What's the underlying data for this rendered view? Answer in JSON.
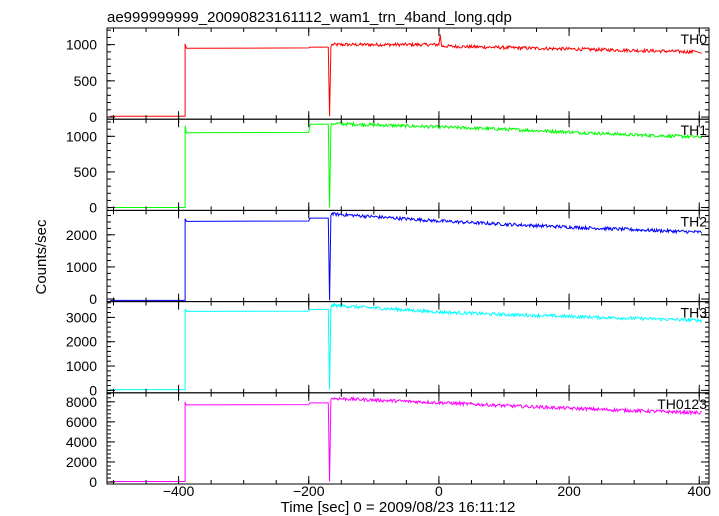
{
  "chart_data": {
    "type": "line",
    "title": "ae999999999_20090823161112_wam1_trn_4band_long.qdp",
    "xlabel": "Time [sec] 0 = 2009/08/23 16:11:12",
    "ylabel": "Counts/sec",
    "xlim": [
      -510,
      415
    ],
    "x_ticks": [
      -400,
      -200,
      0,
      200,
      400
    ],
    "x_tick_labels": [
      "−400",
      "−200",
      "0",
      "200",
      "400"
    ],
    "grid": false,
    "panels": [
      {
        "name": "TH0",
        "color": "#ff0000",
        "ylim": [
          -30,
          1230
        ],
        "y_ticks": [
          0,
          500,
          1000
        ],
        "y_tick_labels": [
          "0",
          "500",
          "1000"
        ],
        "points": [
          [
            -505,
            10
          ],
          [
            -390,
            10
          ],
          [
            -390,
            1010
          ],
          [
            -388,
            950
          ],
          [
            -200,
            955
          ],
          [
            -198,
            965
          ],
          [
            -170,
            965
          ],
          [
            -168,
            10
          ],
          [
            -166,
            960
          ],
          [
            -165,
            1000
          ],
          [
            0,
            1000
          ],
          [
            2,
            1140
          ],
          [
            4,
            980
          ],
          [
            100,
            960
          ],
          [
            200,
            940
          ],
          [
            300,
            920
          ],
          [
            390,
            900
          ],
          [
            404,
            880
          ]
        ]
      },
      {
        "name": "TH1",
        "color": "#00ff00",
        "ylim": [
          -40,
          1240
        ],
        "y_ticks": [
          0,
          500,
          1000
        ],
        "y_tick_labels": [
          "0",
          "500",
          "1000"
        ],
        "points": [
          [
            -505,
            0
          ],
          [
            -390,
            0
          ],
          [
            -390,
            1150
          ],
          [
            -388,
            1050
          ],
          [
            -200,
            1055
          ],
          [
            -198,
            1170
          ],
          [
            -170,
            1170
          ],
          [
            -168,
            0
          ],
          [
            -166,
            1120
          ],
          [
            -165,
            1180
          ],
          [
            100,
            1100
          ],
          [
            200,
            1060
          ],
          [
            300,
            1020
          ],
          [
            404,
            990
          ]
        ]
      },
      {
        "name": "TH2",
        "color": "#0000ff",
        "ylim": [
          -80,
          2760
        ],
        "y_ticks": [
          0,
          1000,
          2000
        ],
        "y_tick_labels": [
          "0",
          "1000",
          "2000"
        ],
        "points": [
          [
            -505,
            -40
          ],
          [
            -390,
            -40
          ],
          [
            -390,
            2500
          ],
          [
            -388,
            2420
          ],
          [
            -200,
            2430
          ],
          [
            -198,
            2520
          ],
          [
            -170,
            2520
          ],
          [
            -168,
            -40
          ],
          [
            -166,
            2600
          ],
          [
            -165,
            2650
          ],
          [
            0,
            2430
          ],
          [
            100,
            2330
          ],
          [
            200,
            2240
          ],
          [
            300,
            2160
          ],
          [
            404,
            2080
          ]
        ]
      },
      {
        "name": "TH3",
        "color": "#00ffff",
        "ylim": [
          -100,
          3650
        ],
        "y_ticks": [
          0,
          1000,
          2000,
          3000
        ],
        "y_tick_labels": [
          "0",
          "1000",
          "2000",
          "3000"
        ],
        "points": [
          [
            -505,
            30
          ],
          [
            -390,
            30
          ],
          [
            -390,
            3350
          ],
          [
            -388,
            3250
          ],
          [
            -200,
            3260
          ],
          [
            -198,
            3330
          ],
          [
            -170,
            3330
          ],
          [
            -168,
            30
          ],
          [
            -166,
            3400
          ],
          [
            -165,
            3500
          ],
          [
            0,
            3220
          ],
          [
            100,
            3120
          ],
          [
            200,
            3040
          ],
          [
            300,
            2960
          ],
          [
            404,
            2880
          ]
        ]
      },
      {
        "name": "TH0123",
        "color": "#ff00ff",
        "ylim": [
          -200,
          8900
        ],
        "y_ticks": [
          0,
          2000,
          4000,
          6000,
          8000
        ],
        "y_tick_labels": [
          "0",
          "2000",
          "4000",
          "6000",
          "8000"
        ],
        "points": [
          [
            -505,
            50
          ],
          [
            -390,
            50
          ],
          [
            -390,
            7900
          ],
          [
            -388,
            7700
          ],
          [
            -200,
            7720
          ],
          [
            -198,
            7900
          ],
          [
            -170,
            7900
          ],
          [
            -168,
            50
          ],
          [
            -166,
            8200
          ],
          [
            -165,
            8350
          ],
          [
            0,
            7920
          ],
          [
            100,
            7620
          ],
          [
            200,
            7360
          ],
          [
            300,
            7120
          ],
          [
            404,
            6900
          ]
        ]
      }
    ]
  }
}
